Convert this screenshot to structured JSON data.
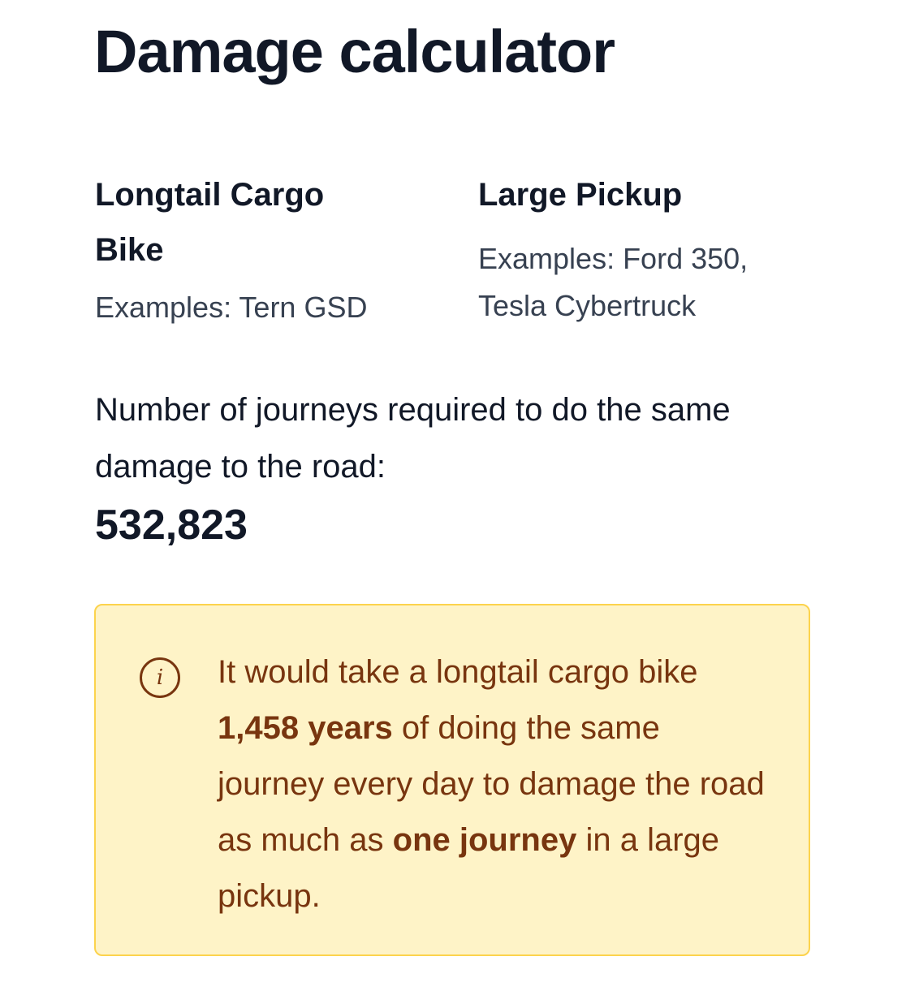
{
  "title": "Damage calculator",
  "vehicles": [
    {
      "name": "Longtail Cargo Bike",
      "examples": "Examples: Tern GSD"
    },
    {
      "name": "Large Pickup",
      "examples": "Examples: Ford 350, Tesla Cybertruck"
    }
  ],
  "result": {
    "label": "Number of journeys required to do the same damage to the road:",
    "value": "532,823"
  },
  "note": {
    "icon": "info-icon",
    "part1": "It would take a longtail cargo bike ",
    "years": "1,458 years",
    "part2": " of doing the same journey every day to damage the road as much as ",
    "journey": "one journey",
    "part3": " in a large pickup.",
    "colors": {
      "background": "#fef3c7",
      "border": "#fcd34d",
      "text": "#78350f"
    }
  }
}
